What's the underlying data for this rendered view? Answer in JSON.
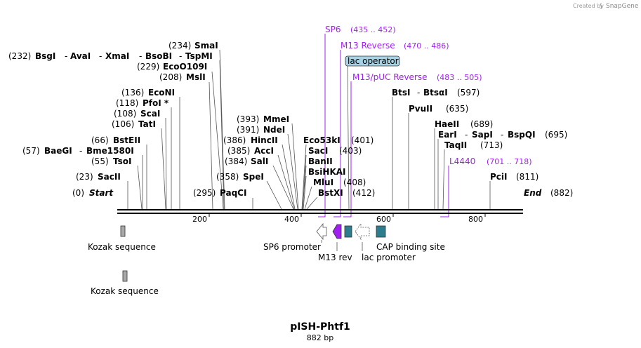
{
  "header": {
    "credit_prefix": "Created by",
    "credit_brand": "SnapGene"
  },
  "plasmid": {
    "name": "pISH-Phtf1",
    "length_label": "882 bp"
  },
  "ruler": {
    "ticks": [
      "200",
      "400",
      "600",
      "800"
    ]
  },
  "enzymes": [
    {
      "pos": "(234)",
      "name": "SmaI"
    },
    {
      "pos": "(232)",
      "name": "BsgI"
    },
    {
      "name": "AvaI"
    },
    {
      "name": "XmaI"
    },
    {
      "name": "BsoBI"
    },
    {
      "name": "TspMI"
    },
    {
      "pos": "(229)",
      "name": "EcoO109I"
    },
    {
      "pos": "(208)",
      "name": "MslI"
    },
    {
      "pos": "(136)",
      "name": "EcoNI"
    },
    {
      "pos": "(118)",
      "name": "PfoI *"
    },
    {
      "pos": "(108)",
      "name": "ScaI"
    },
    {
      "pos": "(106)",
      "name": "TatI"
    },
    {
      "pos": "(66)",
      "name": "BstEII"
    },
    {
      "pos": "(57)",
      "name": "BaeGI"
    },
    {
      "name": "Bme1580I"
    },
    {
      "pos": "(55)",
      "name": "TsoI"
    },
    {
      "pos": "(23)",
      "name": "SacII"
    },
    {
      "pos": "(0)",
      "name": "Start"
    },
    {
      "pos": "(393)",
      "name": "MmeI"
    },
    {
      "pos": "(391)",
      "name": "NdeI"
    },
    {
      "pos": "(386)",
      "name": "HincII"
    },
    {
      "pos": "(385)",
      "name": "AccI"
    },
    {
      "pos": "(384)",
      "name": "SalI"
    },
    {
      "pos": "(358)",
      "name": "SpeI"
    },
    {
      "pos": "(295)",
      "name": "PaqCI"
    },
    {
      "pos": "(401)",
      "name": "Eco53kI"
    },
    {
      "pos": "(403)",
      "name": "SacI"
    },
    {
      "name": "BanII"
    },
    {
      "name": "BsiHKAI"
    },
    {
      "pos": "(408)",
      "name": "MluI"
    },
    {
      "pos": "(412)",
      "name": "BstXI"
    },
    {
      "pos": "(597)",
      "name": "BtsI"
    },
    {
      "name": "BtsαI"
    },
    {
      "pos": "(635)",
      "name": "PvuII"
    },
    {
      "pos": "(689)",
      "name": "HaeII"
    },
    {
      "pos": "(695)",
      "name": "EarI"
    },
    {
      "name": "SapI"
    },
    {
      "name": "BspQI"
    },
    {
      "pos": "(713)",
      "name": "TaqII"
    },
    {
      "pos": "(811)",
      "name": "PciI"
    },
    {
      "pos": "(882)",
      "name": "End"
    }
  ],
  "primers": [
    {
      "name": "SP6",
      "range": "(435 .. 452)"
    },
    {
      "name": "M13 Reverse",
      "range": "(470 .. 486)"
    },
    {
      "name": "M13/pUC Reverse",
      "range": "(483 .. 505)"
    },
    {
      "name": "L4440",
      "range": "(701 .. 718)"
    }
  ],
  "features": [
    {
      "name": "lac operator"
    },
    {
      "name": "Kozak sequence"
    },
    {
      "name": "Kozak sequence"
    },
    {
      "name": "SP6 promoter"
    },
    {
      "name": "M13 rev"
    },
    {
      "name": "lac promoter"
    },
    {
      "name": "CAP binding site"
    }
  ],
  "colors": {
    "primer": "#a020f0",
    "feature_teal": "#2e7d8e",
    "feature_gray": "#a9a9a9",
    "operator_fill": "#a6d4e6"
  }
}
